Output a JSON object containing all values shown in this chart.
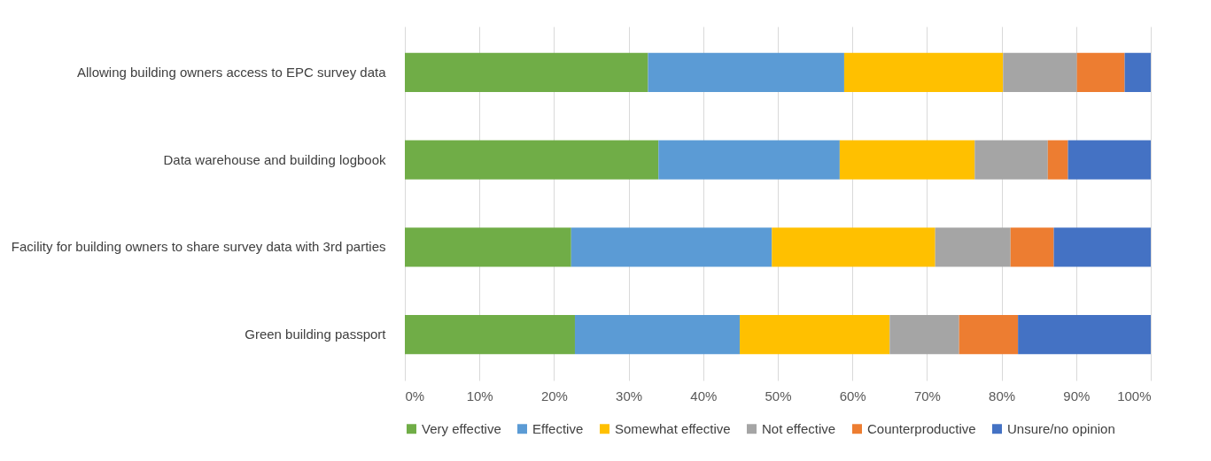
{
  "chart_data": {
    "type": "bar",
    "orientation": "horizontal",
    "stacked": true,
    "categories": [
      "Allowing building owners access to EPC survey data",
      "Data warehouse and building logbook",
      "Facility for building owners to share survey data with 3rd parties",
      "Green building passport"
    ],
    "series": [
      {
        "name": "Very effective",
        "color": "#70ad47",
        "values": [
          32.6,
          34.0,
          22.3,
          22.8
        ]
      },
      {
        "name": "Effective",
        "color": "#5b9bd5",
        "values": [
          26.3,
          24.3,
          26.9,
          22.1
        ]
      },
      {
        "name": "Somewhat effective",
        "color": "#ffc000",
        "values": [
          21.3,
          18.1,
          21.9,
          20.1
        ]
      },
      {
        "name": "Not effective",
        "color": "#a5a5a5",
        "values": [
          9.9,
          9.8,
          10.1,
          9.3
        ]
      },
      {
        "name": "Counterproductive",
        "color": "#ed7d31",
        "values": [
          6.4,
          2.7,
          5.8,
          7.9
        ]
      },
      {
        "name": "Unsure/no opinion",
        "color": "#4472c4",
        "values": [
          3.5,
          11.1,
          13.0,
          17.8
        ]
      }
    ],
    "xlim": [
      0,
      100
    ],
    "xticks": [
      {
        "value": 0,
        "label": "0%"
      },
      {
        "value": 10,
        "label": "10%"
      },
      {
        "value": 20,
        "label": "20%"
      },
      {
        "value": 30,
        "label": "30%"
      },
      {
        "value": 40,
        "label": "40%"
      },
      {
        "value": 50,
        "label": "50%"
      },
      {
        "value": 60,
        "label": "60%"
      },
      {
        "value": 70,
        "label": "70%"
      },
      {
        "value": 80,
        "label": "80%"
      },
      {
        "value": 90,
        "label": "90%"
      },
      {
        "value": 100,
        "label": "100%"
      }
    ],
    "grid": "x",
    "legend": "bottom"
  }
}
